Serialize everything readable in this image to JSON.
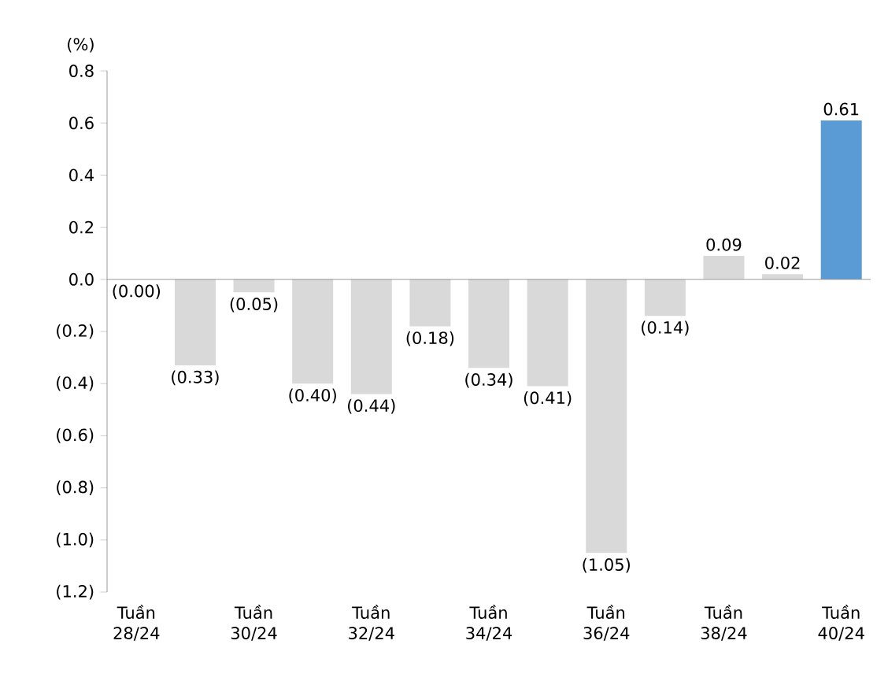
{
  "chart_data": {
    "type": "bar",
    "ylabel": "(%)",
    "categories": [
      "Tuần 28/24",
      null,
      "Tuần 30/24",
      null,
      "Tuần 32/24",
      null,
      "Tuần 34/24",
      null,
      "Tuần 36/24",
      null,
      "Tuần 38/24",
      null,
      "Tuần 40/24"
    ],
    "values": [
      0.0,
      -0.33,
      -0.05,
      -0.4,
      -0.44,
      -0.18,
      -0.34,
      -0.41,
      -1.05,
      -0.14,
      0.09,
      0.02,
      0.61
    ],
    "value_labels": [
      "(0.00)",
      "(0.33)",
      "(0.05)",
      "(0.40)",
      "(0.44)",
      "(0.18)",
      "(0.34)",
      "(0.41)",
      "(1.05)",
      "(0.14)",
      "0.09",
      "0.02",
      "0.61"
    ],
    "colors": [
      "#d9d9d9",
      "#d9d9d9",
      "#d9d9d9",
      "#d9d9d9",
      "#d9d9d9",
      "#d9d9d9",
      "#d9d9d9",
      "#d9d9d9",
      "#d9d9d9",
      "#d9d9d9",
      "#d9d9d9",
      "#d9d9d9",
      "#5b9bd5"
    ],
    "ylim": [
      -1.2,
      0.8
    ],
    "yticks": [
      {
        "value": -1.2,
        "label": "(1.2)"
      },
      {
        "value": -1.0,
        "label": "(1.0)"
      },
      {
        "value": -0.8,
        "label": "(0.8)"
      },
      {
        "value": -0.6,
        "label": "(0.6)"
      },
      {
        "value": -0.4,
        "label": "(0.4)"
      },
      {
        "value": -0.2,
        "label": "(0.2)"
      },
      {
        "value": 0.0,
        "label": "0.0"
      },
      {
        "value": 0.2,
        "label": "0.2"
      },
      {
        "value": 0.4,
        "label": "0.4"
      },
      {
        "value": 0.6,
        "label": "0.6"
      },
      {
        "value": 0.8,
        "label": "0.8"
      }
    ]
  }
}
